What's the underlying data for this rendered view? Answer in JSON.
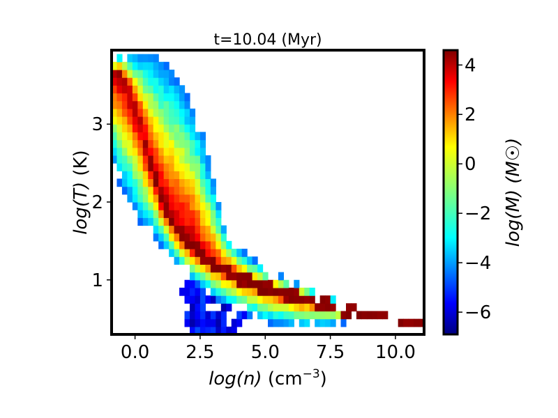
{
  "chart_data": {
    "type": "heatmap",
    "title": "t=10.04 (Myr)",
    "xlabel_var": "log(n)",
    "xlabel_unit": "(cm",
    "xlabel_exp": "−3",
    "xlabel_close": ")",
    "ylabel_var": "log(T)",
    "ylabel_unit": "(K)",
    "colorbar_label": "log(M) (M☉)",
    "xlim": [
      -0.9,
      11.1
    ],
    "ylim": [
      0.3,
      3.95
    ],
    "xticks": [
      0.0,
      2.5,
      5.0,
      7.5,
      10.0
    ],
    "xtick_labels": [
      "0.0",
      "2.5",
      "5.0",
      "7.5",
      "10.0"
    ],
    "yticks": [
      1,
      2,
      3
    ],
    "ytick_labels": [
      "1",
      "2",
      "3"
    ],
    "clim": [
      -6.9,
      4.6
    ],
    "cticks": [
      4,
      2,
      0,
      -2,
      -4,
      -6
    ],
    "ctick_labels": [
      "4",
      "2",
      "0",
      "−2",
      "−4",
      "−6"
    ],
    "colormap": "jet",
    "bin_width_x": 0.2,
    "bin_width_y": 0.1,
    "envelope": [
      {
        "x": -0.9,
        "y_top": 3.6,
        "y_bot": 2.7
      },
      {
        "x": -0.8,
        "y_top": 3.8,
        "y_bot": 2.45
      },
      {
        "x": -0.6,
        "y_top": 3.9,
        "y_bot": 2.25
      },
      {
        "x": -0.2,
        "y_top": 3.9,
        "y_bot": 2.0
      },
      {
        "x": 0.2,
        "y_top": 3.9,
        "y_bot": 1.75
      },
      {
        "x": 0.6,
        "y_top": 3.9,
        "y_bot": 1.6
      },
      {
        "x": 1.0,
        "y_top": 3.8,
        "y_bot": 1.45
      },
      {
        "x": 1.4,
        "y_top": 3.7,
        "y_bot": 1.3
      },
      {
        "x": 1.8,
        "y_top": 3.5,
        "y_bot": 1.15
      },
      {
        "x": 2.2,
        "y_top": 3.2,
        "y_bot": 1.0
      },
      {
        "x": 2.6,
        "y_top": 2.85,
        "y_bot": 0.9
      },
      {
        "x": 3.0,
        "y_top": 2.3,
        "y_bot": 0.8
      },
      {
        "x": 3.4,
        "y_top": 1.7,
        "y_bot": 0.7
      },
      {
        "x": 4.0,
        "y_top": 1.4,
        "y_bot": 0.6
      },
      {
        "x": 5.0,
        "y_top": 1.15,
        "y_bot": 0.45
      },
      {
        "x": 6.0,
        "y_top": 1.0,
        "y_bot": 0.4
      },
      {
        "x": 7.0,
        "y_top": 0.85,
        "y_bot": 0.4
      },
      {
        "x": 8.0,
        "y_top": 0.72,
        "y_bot": 0.45
      },
      {
        "x": 9.0,
        "y_top": 0.6,
        "y_bot": 0.48
      },
      {
        "x": 10.0,
        "y_top": 0.53,
        "y_bot": 0.45
      },
      {
        "x": 11.1,
        "y_top": 0.5,
        "y_bot": 0.42
      }
    ],
    "ridge": [
      {
        "x": -0.7,
        "y": 3.7
      },
      {
        "x": -0.3,
        "y": 3.5
      },
      {
        "x": 0.2,
        "y": 3.0
      },
      {
        "x": 0.6,
        "y": 2.5
      },
      {
        "x": 1.0,
        "y": 2.05
      },
      {
        "x": 1.5,
        "y": 1.7
      },
      {
        "x": 2.0,
        "y": 1.5
      },
      {
        "x": 2.5,
        "y": 1.35
      },
      {
        "x": 3.0,
        "y": 1.2
      },
      {
        "x": 4.0,
        "y": 1.03
      },
      {
        "x": 5.0,
        "y": 0.9
      },
      {
        "x": 6.0,
        "y": 0.8
      },
      {
        "x": 7.0,
        "y": 0.72
      },
      {
        "x": 8.0,
        "y": 0.63
      },
      {
        "x": 9.0,
        "y": 0.56
      },
      {
        "x": 10.0,
        "y": 0.51
      },
      {
        "x": 11.0,
        "y": 0.46
      }
    ],
    "blue_clump": {
      "x_range": [
        1.8,
        4.6
      ],
      "y_range": [
        0.3,
        1.15
      ],
      "value_range": [
        -6.6,
        -4.6
      ]
    }
  }
}
